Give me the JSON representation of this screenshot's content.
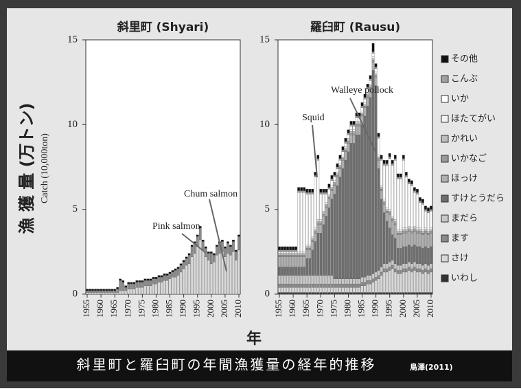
{
  "figure": {
    "y_label": "漁 獲 量 (万トン)",
    "y_label_en": "Catch (10,000ton)",
    "x_label": "年",
    "caption": "斜里町と羅臼町の年間漁獲量の経年的推移",
    "source": "鳥澤(2011)"
  },
  "chart_data": [
    {
      "type": "stacked-bar",
      "title": "斜里町 (Shyari)",
      "x": [
        1955,
        1956,
        1957,
        1958,
        1959,
        1960,
        1961,
        1962,
        1963,
        1964,
        1965,
        1966,
        1967,
        1968,
        1969,
        1970,
        1971,
        1972,
        1973,
        1974,
        1975,
        1976,
        1977,
        1978,
        1979,
        1980,
        1981,
        1982,
        1983,
        1984,
        1985,
        1986,
        1987,
        1988,
        1989,
        1990,
        1991,
        1992,
        1993,
        1994,
        1995,
        1996,
        1997,
        1998,
        1999,
        2000,
        2001,
        2002,
        2003,
        2004,
        2005,
        2006,
        2007,
        2008,
        2009,
        2010
      ],
      "xlim": [
        1954.5,
        2010.5
      ],
      "xticks": [
        1955,
        1960,
        1965,
        1970,
        1975,
        1980,
        1985,
        1990,
        1995,
        2000,
        2005,
        2010
      ],
      "ylim": [
        0,
        15
      ],
      "yticks": [
        0,
        5,
        10,
        15
      ],
      "annotations": [
        "Chum salmon",
        "Pink salmon"
      ],
      "series": [
        {
          "name": "さけ",
          "color": "#d8d8d8",
          "values": [
            0.1,
            0.1,
            0.1,
            0.1,
            0.1,
            0.1,
            0.1,
            0.1,
            0.1,
            0.1,
            0.1,
            0.1,
            0.2,
            0.2,
            0.2,
            0.3,
            0.3,
            0.3,
            0.4,
            0.4,
            0.4,
            0.5,
            0.5,
            0.5,
            0.6,
            0.6,
            0.7,
            0.7,
            0.8,
            0.8,
            0.9,
            1.0,
            1.0,
            1.1,
            1.3,
            1.5,
            1.7,
            1.8,
            2.2,
            2.4,
            2.8,
            3.2,
            2.6,
            2.2,
            2.0,
            1.8,
            1.9,
            2.3,
            2.4,
            2.5,
            2.2,
            2.4,
            2.3,
            2.5,
            2.0,
            2.6
          ]
        },
        {
          "name": "ます",
          "color": "#8a8a8a",
          "values": [
            0.1,
            0.1,
            0.1,
            0.1,
            0.1,
            0.1,
            0.1,
            0.1,
            0.1,
            0.1,
            0.1,
            0.2,
            0.6,
            0.5,
            0.2,
            0.3,
            0.3,
            0.3,
            0.3,
            0.3,
            0.3,
            0.3,
            0.3,
            0.3,
            0.3,
            0.3,
            0.3,
            0.3,
            0.3,
            0.3,
            0.3,
            0.3,
            0.4,
            0.4,
            0.4,
            0.4,
            0.4,
            0.5,
            0.6,
            0.6,
            0.6,
            0.7,
            0.5,
            0.5,
            0.4,
            0.6,
            0.4,
            0.5,
            0.6,
            0.6,
            0.5,
            0.6,
            0.5,
            0.6,
            0.5,
            0.8
          ]
        },
        {
          "name": "その他",
          "color": "#111111",
          "values": [
            0.1,
            0.1,
            0.1,
            0.1,
            0.1,
            0.1,
            0.1,
            0.1,
            0.1,
            0.1,
            0.1,
            0.1,
            0.1,
            0.1,
            0.1,
            0.1,
            0.1,
            0.1,
            0.1,
            0.1,
            0.1,
            0.1,
            0.1,
            0.1,
            0.1,
            0.1,
            0.1,
            0.1,
            0.1,
            0.1,
            0.1,
            0.1,
            0.1,
            0.1,
            0.1,
            0.1,
            0.1,
            0.1,
            0.1,
            0.1,
            0.1,
            0.1,
            0.1,
            0.1,
            0.1,
            0.1,
            0.1,
            0.1,
            0.1,
            0.1,
            0.1,
            0.1,
            0.1,
            0.1,
            0.1,
            0.1
          ]
        }
      ]
    },
    {
      "type": "stacked-bar",
      "title": "羅臼町 (Rausu)",
      "x": [
        1955,
        1956,
        1957,
        1958,
        1959,
        1960,
        1961,
        1962,
        1963,
        1964,
        1965,
        1966,
        1967,
        1968,
        1969,
        1970,
        1971,
        1972,
        1973,
        1974,
        1975,
        1976,
        1977,
        1978,
        1979,
        1980,
        1981,
        1982,
        1983,
        1984,
        1985,
        1986,
        1987,
        1988,
        1989,
        1990,
        1991,
        1992,
        1993,
        1994,
        1995,
        1996,
        1997,
        1998,
        1999,
        2000,
        2001,
        2002,
        2003,
        2004,
        2005,
        2006,
        2007,
        2008,
        2009,
        2010
      ],
      "xlim": [
        1954.5,
        2010.5
      ],
      "xticks": [
        1955,
        1960,
        1965,
        1970,
        1975,
        1980,
        1985,
        1990,
        1995,
        2000,
        2005,
        2010
      ],
      "ylim": [
        0,
        15
      ],
      "yticks": [
        0,
        5,
        10,
        15
      ],
      "annotations": [
        "Squid",
        "Walleye pollock"
      ],
      "series": [
        {
          "name": "いわし",
          "color": "#333333",
          "values": [
            0.1,
            0.1,
            0.1,
            0.1,
            0.1,
            0.1,
            0.1,
            0.1,
            0.1,
            0.1,
            0.1,
            0.1,
            0.1,
            0.1,
            0.1,
            0.1,
            0.1,
            0.1,
            0.1,
            0.1,
            0.1,
            0.1,
            0.1,
            0.1,
            0.1,
            0.1,
            0.1,
            0.1,
            0.1,
            0.1,
            0.1,
            0.1,
            0.1,
            0.1,
            0.1,
            0.1,
            0.1,
            0.1,
            0.1,
            0.1,
            0.1,
            0.1,
            0.1,
            0.1,
            0.1,
            0.1,
            0.1,
            0.1,
            0.1,
            0.1,
            0.1,
            0.1,
            0.1,
            0.1,
            0.1,
            0.1
          ]
        },
        {
          "name": "さけ",
          "color": "#d8d8d8",
          "values": [
            0.3,
            0.3,
            0.3,
            0.3,
            0.3,
            0.3,
            0.3,
            0.3,
            0.3,
            0.3,
            0.3,
            0.3,
            0.3,
            0.3,
            0.3,
            0.3,
            0.3,
            0.3,
            0.3,
            0.3,
            0.3,
            0.3,
            0.3,
            0.3,
            0.3,
            0.3,
            0.3,
            0.3,
            0.3,
            0.3,
            0.4,
            0.4,
            0.5,
            0.5,
            0.6,
            0.7,
            0.8,
            1,
            1.2,
            1.2,
            1.3,
            1.4,
            1.2,
            1.1,
            1.1,
            1.2,
            1.2,
            1.3,
            1.2,
            1.3,
            1.2,
            1.2,
            1.1,
            1.2,
            1.1,
            1.2
          ]
        },
        {
          "name": "ます",
          "color": "#8a8a8a",
          "values": [
            0.2,
            0.2,
            0.2,
            0.2,
            0.2,
            0.2,
            0.2,
            0.2,
            0.2,
            0.2,
            0.2,
            0.2,
            0.2,
            0.2,
            0.2,
            0.2,
            0.2,
            0.2,
            0.2,
            0.2,
            0.2,
            0.2,
            0.2,
            0.2,
            0.2,
            0.2,
            0.2,
            0.2,
            0.2,
            0.2,
            0.2,
            0.2,
            0.2,
            0.2,
            0.2,
            0.2,
            0.2,
            0.2,
            0.2,
            0.2,
            0.2,
            0.2,
            0.2,
            0.2,
            0.2,
            0.2,
            0.2,
            0.2,
            0.2,
            0.2,
            0.2,
            0.2,
            0.2,
            0.2,
            0.2,
            0.2
          ]
        },
        {
          "name": "まだら",
          "color": "#c8c8c8",
          "values": [
            0.5,
            0.5,
            0.5,
            0.5,
            0.5,
            0.5,
            0.5,
            0.5,
            0.5,
            0.5,
            0.5,
            0.5,
            0.5,
            0.5,
            0.5,
            0.5,
            0.5,
            0.5,
            0.5,
            0.5,
            0.3,
            0.3,
            0.3,
            0.3,
            0.3,
            0.3,
            0.3,
            0.3,
            0.3,
            0.3,
            0.3,
            0.3,
            0.3,
            0.3,
            0.3,
            0.3,
            0.3,
            0.3,
            0.3,
            0.3,
            0.3,
            0.3,
            0.3,
            0.3,
            0.3,
            0.3,
            0.3,
            0.3,
            0.3,
            0.3,
            0.3,
            0.3,
            0.3,
            0.3,
            0.3,
            0.3
          ]
        },
        {
          "name": "すけとうだら",
          "color": "#6e6e6e",
          "values": [
            0.5,
            0.5,
            0.5,
            0.5,
            0.5,
            0.5,
            0.5,
            0.5,
            0.5,
            0.5,
            1,
            1,
            1.5,
            2,
            2.5,
            2.5,
            3,
            3.5,
            4,
            4.5,
            5,
            5.5,
            6,
            6.5,
            7,
            7.5,
            8,
            8,
            8.5,
            8.5,
            9,
            9.5,
            10,
            10.5,
            12,
            11,
            6,
            4,
            3,
            2.5,
            2,
            1.5,
            1.5,
            1,
            1,
            1,
            1,
            1,
            1,
            1,
            1,
            1,
            1,
            1,
            1,
            1
          ]
        },
        {
          "name": "ほっけ",
          "color": "#b0b0b0",
          "values": [
            0.6,
            0.6,
            0.6,
            0.6,
            0.6,
            0.6,
            0.6,
            0.6,
            0.6,
            0.6,
            0.5,
            0.5,
            0.5,
            0.5,
            0.5,
            0.5,
            0.5,
            0.5,
            0.5,
            0.5,
            0.5,
            0.5,
            0.5,
            0.5,
            0.5,
            0.5,
            0.5,
            0.5,
            0.5,
            0.5,
            0.5,
            0.5,
            0.5,
            0.5,
            0.5,
            0.5,
            0.5,
            0.5,
            0.5,
            0.5,
            0.8,
            0.8,
            0.8,
            0.8,
            0.8,
            0.8,
            0.8,
            0.8,
            0.8,
            0.8,
            0.8,
            0.8,
            0.8,
            0.8,
            0.8,
            0.8
          ]
        },
        {
          "name": "いかなご",
          "color": "#999999",
          "values": [
            0.1,
            0.1,
            0.1,
            0.1,
            0.1,
            0.1,
            0.1,
            0.1,
            0.1,
            0.1,
            0.1,
            0.1,
            0.1,
            0.1,
            0.1,
            0.1,
            0.1,
            0.1,
            0.1,
            0.1,
            0.1,
            0.1,
            0.1,
            0.1,
            0.1,
            0.1,
            0.1,
            0.1,
            0.1,
            0.1,
            0.1,
            0.1,
            0.1,
            0.1,
            0.1,
            0.1,
            0.1,
            0.1,
            0.1,
            0.1,
            0.1,
            0.1,
            0.1,
            0.1,
            0.1,
            0.1,
            0.1,
            0.1,
            0.1,
            0.1,
            0.1,
            0.1,
            0.1,
            0.1,
            0.1,
            0.1
          ]
        },
        {
          "name": "かれい",
          "color": "#bdbdbd",
          "values": [
            0.1,
            0.1,
            0.1,
            0.1,
            0.1,
            0.1,
            0.1,
            0.1,
            0.1,
            0.1,
            0.1,
            0.1,
            0.1,
            0.1,
            0.1,
            0.1,
            0.1,
            0.1,
            0.1,
            0.1,
            0.1,
            0.1,
            0.1,
            0.1,
            0.1,
            0.1,
            0.1,
            0.1,
            0.1,
            0.1,
            0.1,
            0.1,
            0.1,
            0.1,
            0.1,
            0.1,
            0.1,
            0.1,
            0.1,
            0.1,
            0.1,
            0.1,
            0.1,
            0.1,
            0.1,
            0.1,
            0.1,
            0.1,
            0.1,
            0.1,
            0.1,
            0.1,
            0.1,
            0.1,
            0.1,
            0.1
          ]
        },
        {
          "name": "ほたてがい",
          "color": "#f4f4f4",
          "values": [
            0.1,
            0.1,
            0.1,
            0.1,
            0.1,
            0.1,
            0.1,
            0.1,
            0.1,
            0.1,
            0.1,
            0.1,
            0.1,
            0.1,
            0.1,
            0.1,
            0.1,
            0.1,
            0.1,
            0.1,
            0.1,
            0.1,
            0.1,
            0.1,
            0.1,
            0.1,
            0.1,
            0.1,
            0.1,
            0.1,
            0.1,
            0.1,
            0.1,
            0.1,
            0.1,
            0.1,
            0.1,
            0.1,
            0.1,
            0.1,
            0.1,
            0.1,
            0.1,
            0.1,
            0.1,
            0.1,
            0.1,
            0.1,
            0.1,
            0.1,
            0.1,
            0.1,
            0.1,
            0.1,
            0.1,
            0.1
          ]
        },
        {
          "name": "いか",
          "color": "#ffffff",
          "values": [
            0,
            0,
            0,
            0,
            0,
            0,
            0,
            3.5,
            3.5,
            3.5,
            3,
            3,
            2.5,
            3,
            3.5,
            1.5,
            1,
            0.5,
            0.3,
            0.3,
            0.2,
            0.2,
            0.2,
            0.2,
            0.2,
            0.2,
            0.2,
            0.2,
            0.2,
            0.2,
            0.2,
            0.2,
            0.2,
            0.2,
            0.2,
            0.2,
            1,
            1.5,
            2,
            2.5,
            3,
            3,
            3.5,
            3,
            3,
            4,
            3,
            2.5,
            2.5,
            2,
            2,
            1.5,
            1.5,
            1,
            1,
            1
          ]
        },
        {
          "name": "こんぶ",
          "color": "#a0a0a0",
          "values": [
            0.1,
            0.1,
            0.1,
            0.1,
            0.1,
            0.1,
            0.1,
            0.1,
            0.1,
            0.1,
            0.1,
            0.1,
            0.1,
            0.1,
            0.1,
            0.1,
            0.1,
            0.1,
            0.1,
            0.1,
            0.1,
            0.1,
            0.1,
            0.1,
            0.1,
            0.1,
            0.1,
            0.1,
            0.1,
            0.1,
            0.1,
            0.1,
            0.1,
            0.1,
            0.1,
            0.1,
            0.1,
            0.1,
            0.1,
            0.1,
            0.1,
            0.1,
            0.1,
            0.1,
            0.1,
            0.1,
            0.1,
            0.1,
            0.1,
            0.1,
            0.1,
            0.1,
            0.1,
            0.1,
            0.1,
            0.1
          ]
        },
        {
          "name": "その他",
          "color": "#111111",
          "values": [
            0.2,
            0.2,
            0.2,
            0.2,
            0.2,
            0.2,
            0.2,
            0.2,
            0.2,
            0.2,
            0.2,
            0.2,
            0.2,
            0.2,
            0.2,
            0.2,
            0.2,
            0.2,
            0.2,
            0.2,
            0.2,
            0.2,
            0.2,
            0.2,
            0.2,
            0.2,
            0.2,
            0.2,
            0.2,
            0.2,
            0.2,
            0.2,
            0.2,
            0.2,
            0.5,
            0.2,
            0.2,
            0.2,
            0.2,
            0.2,
            0.2,
            0.2,
            0.2,
            0.2,
            0.2,
            0.2,
            0.2,
            0.2,
            0.2,
            0.2,
            0.2,
            0.2,
            0.2,
            0.2,
            0.2,
            0.2
          ]
        }
      ]
    }
  ]
}
